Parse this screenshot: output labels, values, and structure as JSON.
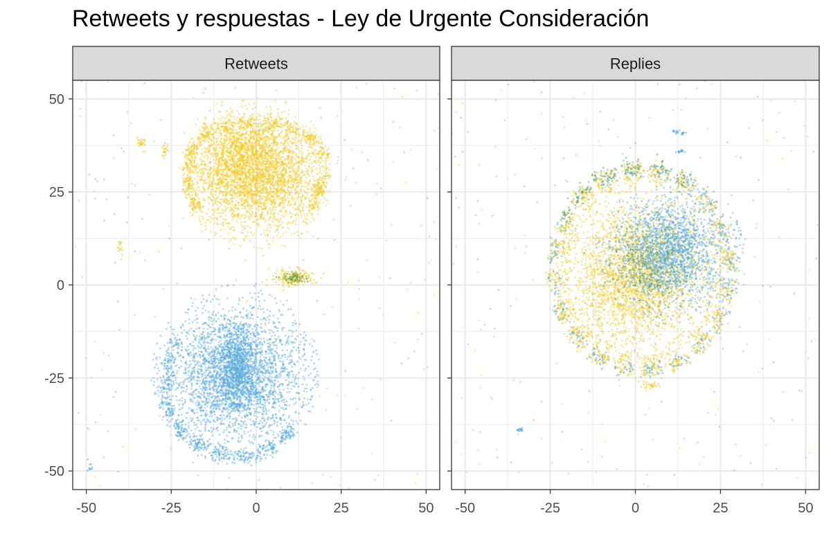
{
  "chart_data": {
    "type": "scatter",
    "title": "Retweets y respuestas - Ley de Urgente Consideración",
    "xlim": [
      -54,
      54
    ],
    "ylim": [
      -55,
      55
    ],
    "x_ticks": [
      -50,
      -25,
      0,
      25,
      50
    ],
    "y_ticks": [
      -50,
      -25,
      0,
      25,
      50
    ],
    "grid": true,
    "legend": "none",
    "colors": {
      "yellow": "#f2c926",
      "blue": "#56a9da",
      "green": "#5f9e3c",
      "gray": "#b3b3b3"
    },
    "panels": [
      {
        "name": "Retweets",
        "clusters": [
          {
            "color": "yellow",
            "center": [
              0,
              29
            ],
            "sigma": [
              10,
              7
            ],
            "radius": 22,
            "count": 3200
          },
          {
            "color": "yellow",
            "center": [
              -4,
              38
            ],
            "sigma": [
              6,
              4
            ],
            "radius": 15,
            "count": 700
          },
          {
            "color": "blue",
            "center": [
              -6,
              -24
            ],
            "sigma": [
              10,
              9
            ],
            "radius": 25,
            "count": 3000
          },
          {
            "color": "blue",
            "center": [
              -6,
              -22
            ],
            "sigma": [
              3,
              6
            ],
            "radius": 12,
            "count": 800
          }
        ],
        "arcs": [
          {
            "color": "yellow",
            "center": [
              0,
              29
            ],
            "r": [
              22,
              15
            ],
            "from": 20,
            "to": 160,
            "count": 500
          },
          {
            "color": "yellow",
            "center": [
              0,
              29
            ],
            "r": [
              20,
              17
            ],
            "from": 160,
            "to": 215,
            "count": 200
          },
          {
            "color": "yellow",
            "center": [
              0,
              29
            ],
            "r": [
              19,
              16
            ],
            "from": 330,
            "to": 360,
            "count": 120
          },
          {
            "color": "blue",
            "center": [
              -6,
              -24
            ],
            "r": [
              22,
              22
            ],
            "from": 190,
            "to": 320,
            "count": 600
          },
          {
            "color": "blue",
            "center": [
              -6,
              -24
            ],
            "r": [
              20,
              20
            ],
            "from": 150,
            "to": 190,
            "count": 150
          }
        ],
        "blobs": [
          {
            "color": "yellow",
            "center": [
              11,
              2
            ],
            "spread": [
              3,
              1.2
            ],
            "count": 150
          },
          {
            "color": "green",
            "center": [
              11,
              2
            ],
            "spread": [
              2,
              0.8
            ],
            "count": 60
          },
          {
            "color": "yellow",
            "center": [
              -34,
              38
            ],
            "spread": [
              0.6,
              1
            ],
            "count": 25
          },
          {
            "color": "yellow",
            "center": [
              -27,
              36
            ],
            "spread": [
              0.5,
              1
            ],
            "count": 20
          },
          {
            "color": "yellow",
            "center": [
              -40,
              10
            ],
            "spread": [
              0.4,
              1.5
            ],
            "count": 15
          },
          {
            "color": "blue",
            "center": [
              -49,
              -49
            ],
            "spread": [
              0.6,
              0.6
            ],
            "count": 10
          }
        ],
        "scatter": [
          {
            "color": "gray",
            "count": 120
          },
          {
            "color": "yellow",
            "count": 80
          },
          {
            "color": "blue",
            "count": 80
          }
        ]
      },
      {
        "name": "Replies",
        "clusters": [
          {
            "color": "yellow",
            "center": [
              0,
              2
            ],
            "sigma": [
              10,
              9
            ],
            "radius": 24,
            "count": 2600
          },
          {
            "color": "blue",
            "center": [
              10,
              9
            ],
            "sigma": [
              8,
              7
            ],
            "radius": 22,
            "count": 2000
          },
          {
            "color": "green",
            "center": [
              4,
              6
            ],
            "sigma": [
              6,
              6
            ],
            "radius": 15,
            "count": 250
          }
        ],
        "arcs": [
          {
            "color": "yellow",
            "center": [
              2,
              4
            ],
            "r": [
              26,
              27
            ],
            "from": 0,
            "to": 360,
            "count": 1300
          },
          {
            "color": "blue",
            "center": [
              2,
              4
            ],
            "r": [
              26,
              27
            ],
            "from": 0,
            "to": 360,
            "count": 700
          },
          {
            "color": "green",
            "center": [
              2,
              4
            ],
            "r": [
              27,
              28
            ],
            "from": 60,
            "to": 150,
            "count": 160
          },
          {
            "color": "yellow",
            "center": [
              2,
              4
            ],
            "r": [
              23,
              24
            ],
            "from": 0,
            "to": 360,
            "count": 500
          }
        ],
        "blobs": [
          {
            "color": "blue",
            "center": [
              -34,
              -39
            ],
            "spread": [
              0.5,
              0.4
            ],
            "count": 15
          },
          {
            "color": "blue",
            "center": [
              13,
              41
            ],
            "spread": [
              1,
              0.3
            ],
            "count": 20
          },
          {
            "color": "blue",
            "center": [
              13,
              36
            ],
            "spread": [
              0.8,
              0.3
            ],
            "count": 15
          },
          {
            "color": "yellow",
            "center": [
              4,
              -27
            ],
            "spread": [
              2,
              0.5
            ],
            "count": 30
          }
        ],
        "scatter": [
          {
            "color": "gray",
            "count": 80
          },
          {
            "color": "yellow",
            "count": 70
          },
          {
            "color": "blue",
            "count": 110
          }
        ]
      }
    ]
  }
}
